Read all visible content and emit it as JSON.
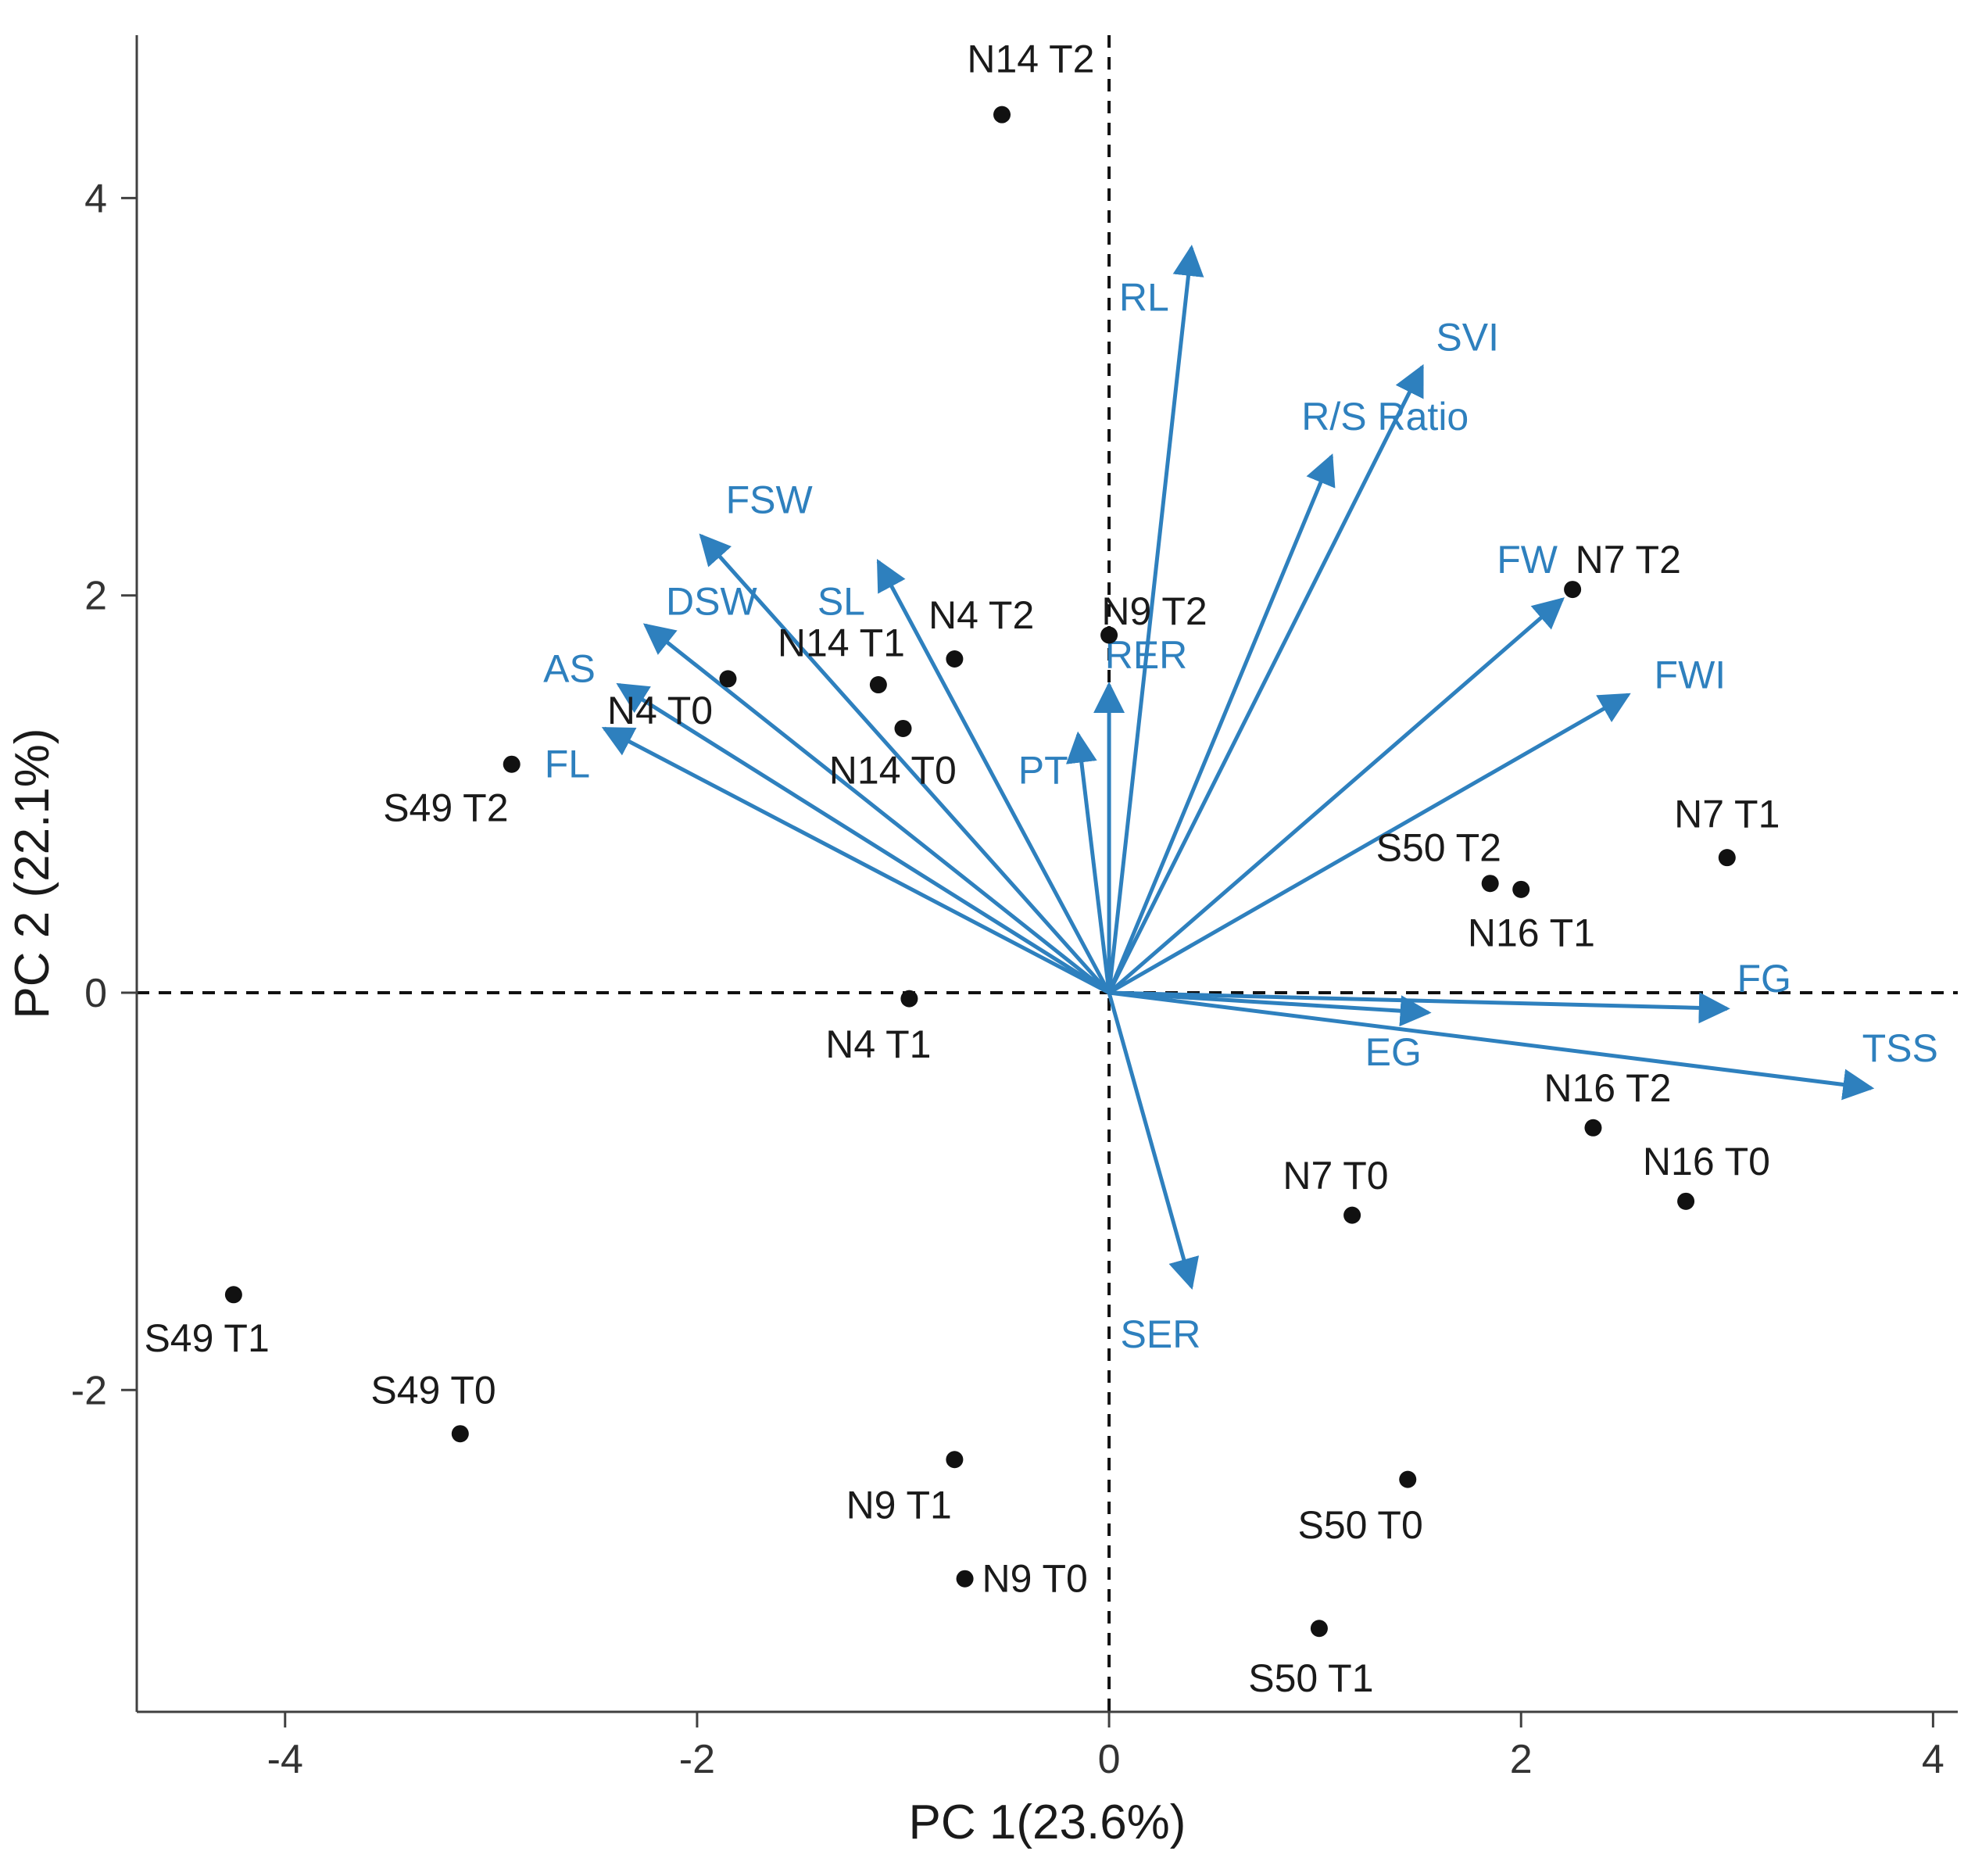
{
  "chart_data": {
    "type": "scatter",
    "subtype": "pca_biplot",
    "title": "",
    "xlabel": "PC 1(23.6%)",
    "ylabel": "PC 2 (22.1%)",
    "xlim": [
      -4.72,
      4.12
    ],
    "ylim": [
      -3.62,
      4.82
    ],
    "xticks": [
      -4,
      -2,
      0,
      2,
      4
    ],
    "yticks": [
      -2,
      0,
      2,
      4
    ],
    "grid": false,
    "legend": "none",
    "zero_lines": "dashed",
    "colors": {
      "arrow": "#2E80BE",
      "arrow_label": "#2E80BE",
      "point": "#111111",
      "point_label": "#1a1a1a",
      "axis": "#404040",
      "tick_label": "#333333",
      "zero_line": "#111111",
      "background": "#ffffff"
    },
    "points": [
      {
        "label": "N14 T2",
        "x": -0.52,
        "y": 4.42,
        "lx": -0.38,
        "ly": 4.7
      },
      {
        "label": "N4 T2",
        "x": -0.75,
        "y": 1.68,
        "lx": -0.62,
        "ly": 1.9
      },
      {
        "label": "N9 T2",
        "x": 0.0,
        "y": 1.8,
        "lx": 0.22,
        "ly": 1.92
      },
      {
        "label": "N14 T1",
        "x": -1.12,
        "y": 1.55,
        "lx": -1.3,
        "ly": 1.76
      },
      {
        "label": "N4 T0",
        "x": -1.85,
        "y": 1.58,
        "lx": -2.18,
        "ly": 1.42
      },
      {
        "label": "N14 T0",
        "x": -1.0,
        "y": 1.33,
        "lx": -1.05,
        "ly": 1.12
      },
      {
        "label": "S49 T2",
        "x": -2.9,
        "y": 1.15,
        "lx": -3.22,
        "ly": 0.93
      },
      {
        "label": "N7 T2",
        "x": 2.25,
        "y": 2.03,
        "lx": 2.52,
        "ly": 2.18
      },
      {
        "label": "N7 T1",
        "x": 3.0,
        "y": 0.68,
        "lx": 3.0,
        "ly": 0.9
      },
      {
        "label": "S50 T2",
        "x": 1.85,
        "y": 0.55,
        "lx": 1.6,
        "ly": 0.73
      },
      {
        "label": "N16 T1",
        "x": 2.0,
        "y": 0.52,
        "lx": 2.05,
        "ly": 0.3
      },
      {
        "label": "N4 T1",
        "x": -0.97,
        "y": -0.03,
        "lx": -1.12,
        "ly": -0.26
      },
      {
        "label": "N16 T2",
        "x": 2.35,
        "y": -0.68,
        "lx": 2.42,
        "ly": -0.48
      },
      {
        "label": "N16 T0",
        "x": 2.8,
        "y": -1.05,
        "lx": 2.9,
        "ly": -0.85
      },
      {
        "label": "N7 T0",
        "x": 1.18,
        "y": -1.12,
        "lx": 1.1,
        "ly": -0.92
      },
      {
        "label": "S49 T1",
        "x": -4.25,
        "y": -1.52,
        "lx": -4.38,
        "ly": -1.74
      },
      {
        "label": "S49 T0",
        "x": -3.15,
        "y": -2.22,
        "lx": -3.28,
        "ly": -2.0
      },
      {
        "label": "N9 T1",
        "x": -0.75,
        "y": -2.35,
        "lx": -1.02,
        "ly": -2.58
      },
      {
        "label": "N9 T0",
        "x": -0.7,
        "y": -2.95,
        "lx": -0.36,
        "ly": -2.95
      },
      {
        "label": "S50 T0",
        "x": 1.45,
        "y": -2.45,
        "lx": 1.22,
        "ly": -2.68
      },
      {
        "label": "S50 T1",
        "x": 1.02,
        "y": -3.2,
        "lx": 0.98,
        "ly": -3.45
      }
    ],
    "arrows": [
      {
        "label": "RL",
        "x": 0.4,
        "y": 3.75,
        "lx": 0.17,
        "ly": 3.5
      },
      {
        "label": "SVI",
        "x": 1.52,
        "y": 3.15,
        "lx": 1.74,
        "ly": 3.3
      },
      {
        "label": "R/S Ratio",
        "x": 1.08,
        "y": 2.7,
        "lx": 1.34,
        "ly": 2.9
      },
      {
        "label": "FSW",
        "x": -1.98,
        "y": 2.3,
        "lx": -1.65,
        "ly": 2.48
      },
      {
        "label": "SL",
        "x": -1.12,
        "y": 2.17,
        "lx": -1.3,
        "ly": 1.97
      },
      {
        "label": "DSW",
        "x": -2.25,
        "y": 1.85,
        "lx": -1.93,
        "ly": 1.97
      },
      {
        "label": "AS",
        "x": -2.38,
        "y": 1.55,
        "lx": -2.62,
        "ly": 1.63
      },
      {
        "label": "FL",
        "x": -2.45,
        "y": 1.33,
        "lx": -2.63,
        "ly": 1.15
      },
      {
        "label": "RER",
        "x": 0.0,
        "y": 1.55,
        "lx": 0.18,
        "ly": 1.7
      },
      {
        "label": "PT",
        "x": -0.15,
        "y": 1.3,
        "lx": -0.32,
        "ly": 1.12
      },
      {
        "label": "FW",
        "x": 2.2,
        "y": 1.98,
        "lx": 2.03,
        "ly": 2.18
      },
      {
        "label": "FWI",
        "x": 2.52,
        "y": 1.5,
        "lx": 2.82,
        "ly": 1.6
      },
      {
        "label": "FG",
        "x": 3.0,
        "y": -0.08,
        "lx": 3.18,
        "ly": 0.07
      },
      {
        "label": "EG",
        "x": 1.55,
        "y": -0.1,
        "lx": 1.38,
        "ly": -0.3
      },
      {
        "label": "TSS",
        "x": 3.7,
        "y": -0.48,
        "lx": 3.84,
        "ly": -0.28
      },
      {
        "label": "SER",
        "x": 0.4,
        "y": -1.48,
        "lx": 0.25,
        "ly": -1.72
      }
    ],
    "styles": {
      "point_radius": 11,
      "arrow_width": 5,
      "tick_font": 52,
      "label_font": 50,
      "axis_title_font": 62
    }
  }
}
